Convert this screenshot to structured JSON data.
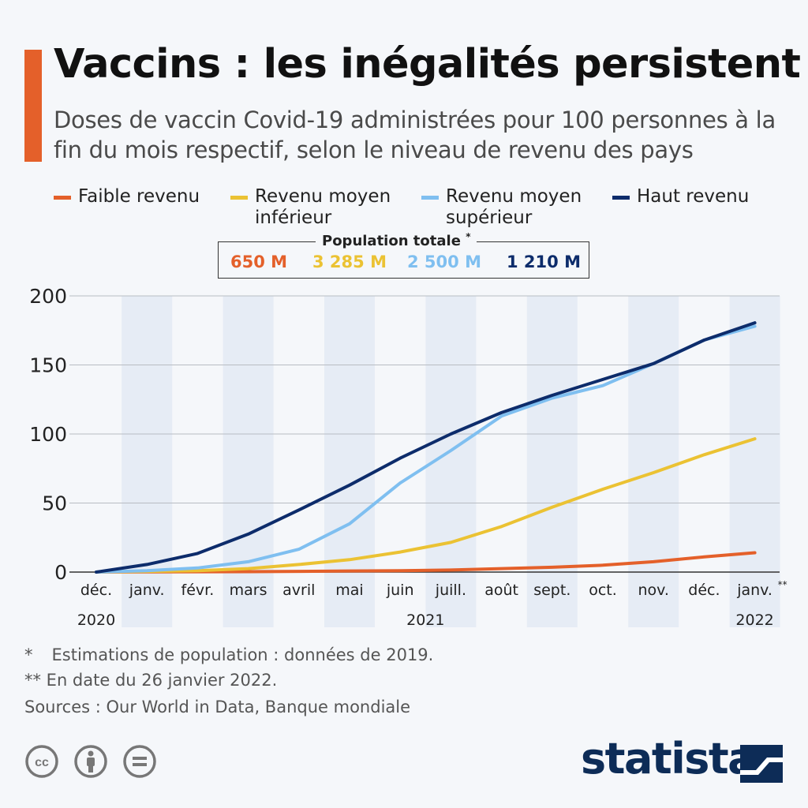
{
  "header": {
    "title": "Vaccins : les inégalités persistent",
    "subtitle": "Doses de vaccin Covid-19 administrées pour 100 personnes à la fin du mois respectif, selon le niveau de revenu des pays"
  },
  "legend": [
    {
      "label": "Faible revenu",
      "color": "#e4602a"
    },
    {
      "label": "Revenu moyen\ninférieur",
      "color": "#ebc233"
    },
    {
      "label": "Revenu moyen\nsupérieur",
      "color": "#7fbff0"
    },
    {
      "label": "Haut revenu",
      "color": "#0d2c6b"
    }
  ],
  "population": {
    "title": "Population totale",
    "title_mark": "*",
    "values": [
      "650 M",
      "3 285 M",
      "2 500 M",
      "1 210 M"
    ]
  },
  "chart_data": {
    "type": "line",
    "title": "",
    "xlabel": "",
    "ylabel": "",
    "ylim": [
      0,
      200
    ],
    "yticks": [
      "0",
      "50",
      "100",
      "150",
      "200"
    ],
    "grid": true,
    "categories": [
      "déc.",
      "janv.",
      "févr.",
      "mars",
      "avril",
      "mai",
      "juin",
      "juill.",
      "août",
      "sept.",
      "oct.",
      "nov.",
      "déc.",
      "janv."
    ],
    "last_category_mark": "**",
    "years": [
      {
        "label": "2020",
        "index": 0
      },
      {
        "label": "2021",
        "index": 6.5
      },
      {
        "label": "2022",
        "index": 13
      }
    ],
    "series": [
      {
        "name": "Faible revenu",
        "color": "#e4602a",
        "values": [
          0,
          0.1,
          0.2,
          0.3,
          0.5,
          0.8,
          1.0,
          1.5,
          2.5,
          3.5,
          5.0,
          7.5,
          11.0,
          14.0
        ]
      },
      {
        "name": "Revenu moyen inférieur",
        "color": "#ebc233",
        "values": [
          0,
          0.5,
          1.0,
          2.5,
          5.5,
          9.0,
          14.5,
          21.5,
          33.0,
          47.0,
          60.0,
          72.0,
          85.0,
          96.5
        ]
      },
      {
        "name": "Revenu moyen supérieur",
        "color": "#7fbff0",
        "values": [
          0,
          1.0,
          3.0,
          7.5,
          16.5,
          35.0,
          64.5,
          88.0,
          113.0,
          126.0,
          135.0,
          151.0,
          168.0,
          178.0
        ]
      },
      {
        "name": "Haut revenu",
        "color": "#0d2c6b",
        "values": [
          0,
          5.5,
          13.5,
          27.5,
          45.0,
          63.0,
          82.5,
          100.0,
          115.5,
          128.0,
          139.5,
          151.0,
          168.0,
          180.5
        ]
      }
    ]
  },
  "footnotes": {
    "note1_mark": "*",
    "note1": "Estimations de population : données de 2019.",
    "note2": "** En date du 26 janvier 2022.",
    "sources": "Sources : Our World in Data, Banque mondiale"
  },
  "brand": {
    "name": "statista"
  },
  "license_icons": [
    "cc-icon",
    "by-person-icon",
    "nd-equals-icon"
  ]
}
